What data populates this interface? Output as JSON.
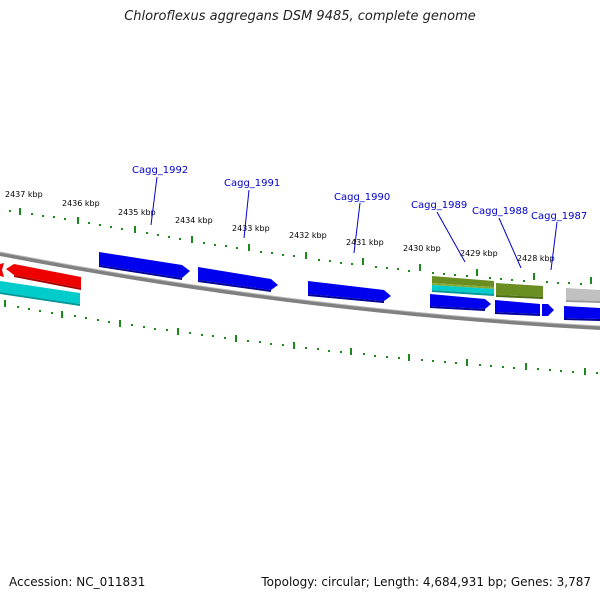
{
  "title": "Chloroflexus aggregans DSM 9485, complete genome",
  "footer": {
    "accession": "Accession: NC_011831",
    "summary": "Topology: circular; Length: 4,684,931 bp; Genes: 3,787"
  },
  "scale_labels": [
    "2437 kbp",
    "2436 kbp",
    "2435 kbp",
    "2434 kbp",
    "2433 kbp",
    "2432 kbp",
    "2431 kbp",
    "2430 kbp",
    "2429 kbp",
    "2428 kbp"
  ],
  "gene_labels": [
    "Cagg_1992",
    "Cagg_1991",
    "Cagg_1990",
    "Cagg_1989",
    "Cagg_1988",
    "Cagg_1987"
  ],
  "colors": {
    "tick": "#1a8a1a",
    "backbone": "#808080",
    "cds": "#0000ee",
    "red": "#ee0000",
    "cyan": "#00cccc",
    "olive": "#6b8e23",
    "grey": "#c0c0c0",
    "gene_label": "#0000cc"
  }
}
